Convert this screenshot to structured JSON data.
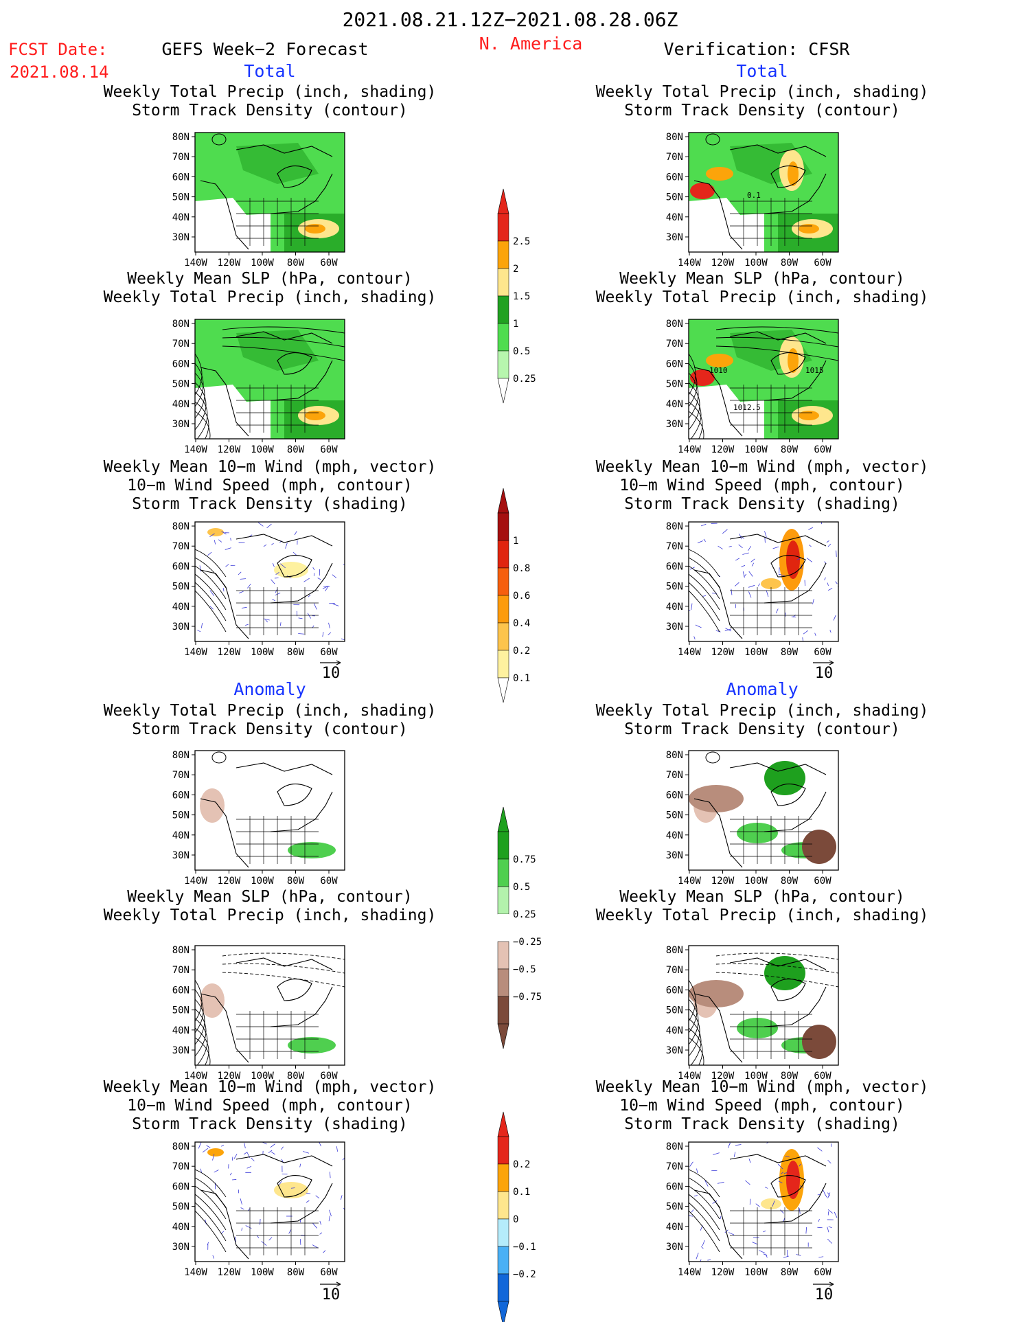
{
  "header": {
    "date_range": "2021.08.21.12Z−2021.08.28.06Z",
    "fcst_label": "FCST Date:",
    "fcst_date": "2021.08.14",
    "left_title": "GEFS Week−2 Forecast",
    "region": "N. America",
    "right_title": "Verification: CFSR"
  },
  "sections": {
    "total": "Total",
    "anomaly": "Anomaly"
  },
  "panel_titles": {
    "precip_track": [
      "Weekly Total Precip (inch, shading)",
      "Storm Track Density (contour)"
    ],
    "slp_precip": [
      "Weekly Mean SLP (hPa, contour)",
      "Weekly Total Precip (inch, shading)"
    ],
    "wind_track": [
      "Weekly Mean 10−m Wind (mph, vector)",
      "10−m Wind Speed (mph, contour)",
      "Storm Track Density (shading)"
    ]
  },
  "axes": {
    "lat_ticks": [
      "80N",
      "70N",
      "60N",
      "50N",
      "40N",
      "30N"
    ],
    "lon_ticks": [
      "140W",
      "120W",
      "100W",
      "80W",
      "60W"
    ]
  },
  "vector_scale": "10",
  "contour_labels": {
    "right_precip_total": "0.1",
    "right_slp_1010": "1010",
    "right_slp_1015": "1015",
    "right_slp_1012": "1012.5"
  },
  "colorbars": {
    "precip_total": {
      "labels": [
        "2.5",
        "2",
        "1.5",
        "1",
        "0.5",
        "0.25"
      ],
      "colors": [
        "#e4261b",
        "#fca40a",
        "#fee68d",
        "#21a121",
        "#4fdc4f",
        "#b7f6ae"
      ]
    },
    "track_total": {
      "labels": [
        "1",
        "0.8",
        "0.6",
        "0.4",
        "0.2",
        "0.1"
      ],
      "colors": [
        "#a50f0f",
        "#e0250f",
        "#f65f0e",
        "#fd9b0c",
        "#fdc44c",
        "#fef19f"
      ]
    },
    "precip_anom": {
      "labels": [
        "0.75",
        "0.5",
        "0.25",
        "−0.25",
        "−0.5",
        "−0.75"
      ],
      "colors": [
        "#1ea01e",
        "#4fcf4f",
        "#b3f2ac",
        "#ffffff",
        "#e4c2b4",
        "#b88d7c",
        "#7b4a3a"
      ]
    },
    "track_anom": {
      "labels": [
        "0.2",
        "0.1",
        "0",
        "−0.1",
        "−0.2"
      ],
      "colors": [
        "#e4261b",
        "#fca40a",
        "#fee68d",
        "#b5ecfb",
        "#4ab0f5",
        "#1167d9"
      ]
    }
  },
  "colors": {
    "red_text": "#ff1c1c",
    "blue_text": "#1633ff",
    "land": "#ffffff"
  }
}
